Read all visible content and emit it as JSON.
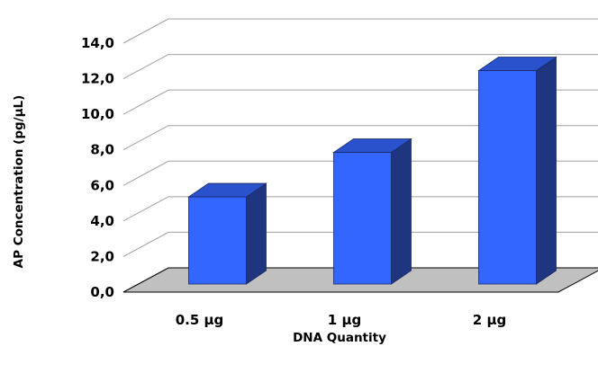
{
  "chart_data": {
    "type": "bar",
    "style": "3d",
    "title": "",
    "xlabel": "DNA Quantity",
    "ylabel": "AP Concentration (pg/µL)",
    "categories": [
      "0.5 µg",
      "1 µg",
      "2 µg"
    ],
    "values": [
      4.9,
      7.4,
      12.0
    ],
    "ylim": [
      0,
      14
    ],
    "yticks": [
      "0,0",
      "2,0",
      "4,0",
      "6,0",
      "8,0",
      "10,0",
      "12,0",
      "14,0"
    ],
    "grid": true,
    "legend": "none",
    "colors": {
      "bar_front": "#3366ff",
      "bar_top": "#2a52cc",
      "bar_side": "#1f3580",
      "floor": "#c0c0c0",
      "gridline": "#a0a0a0"
    }
  }
}
